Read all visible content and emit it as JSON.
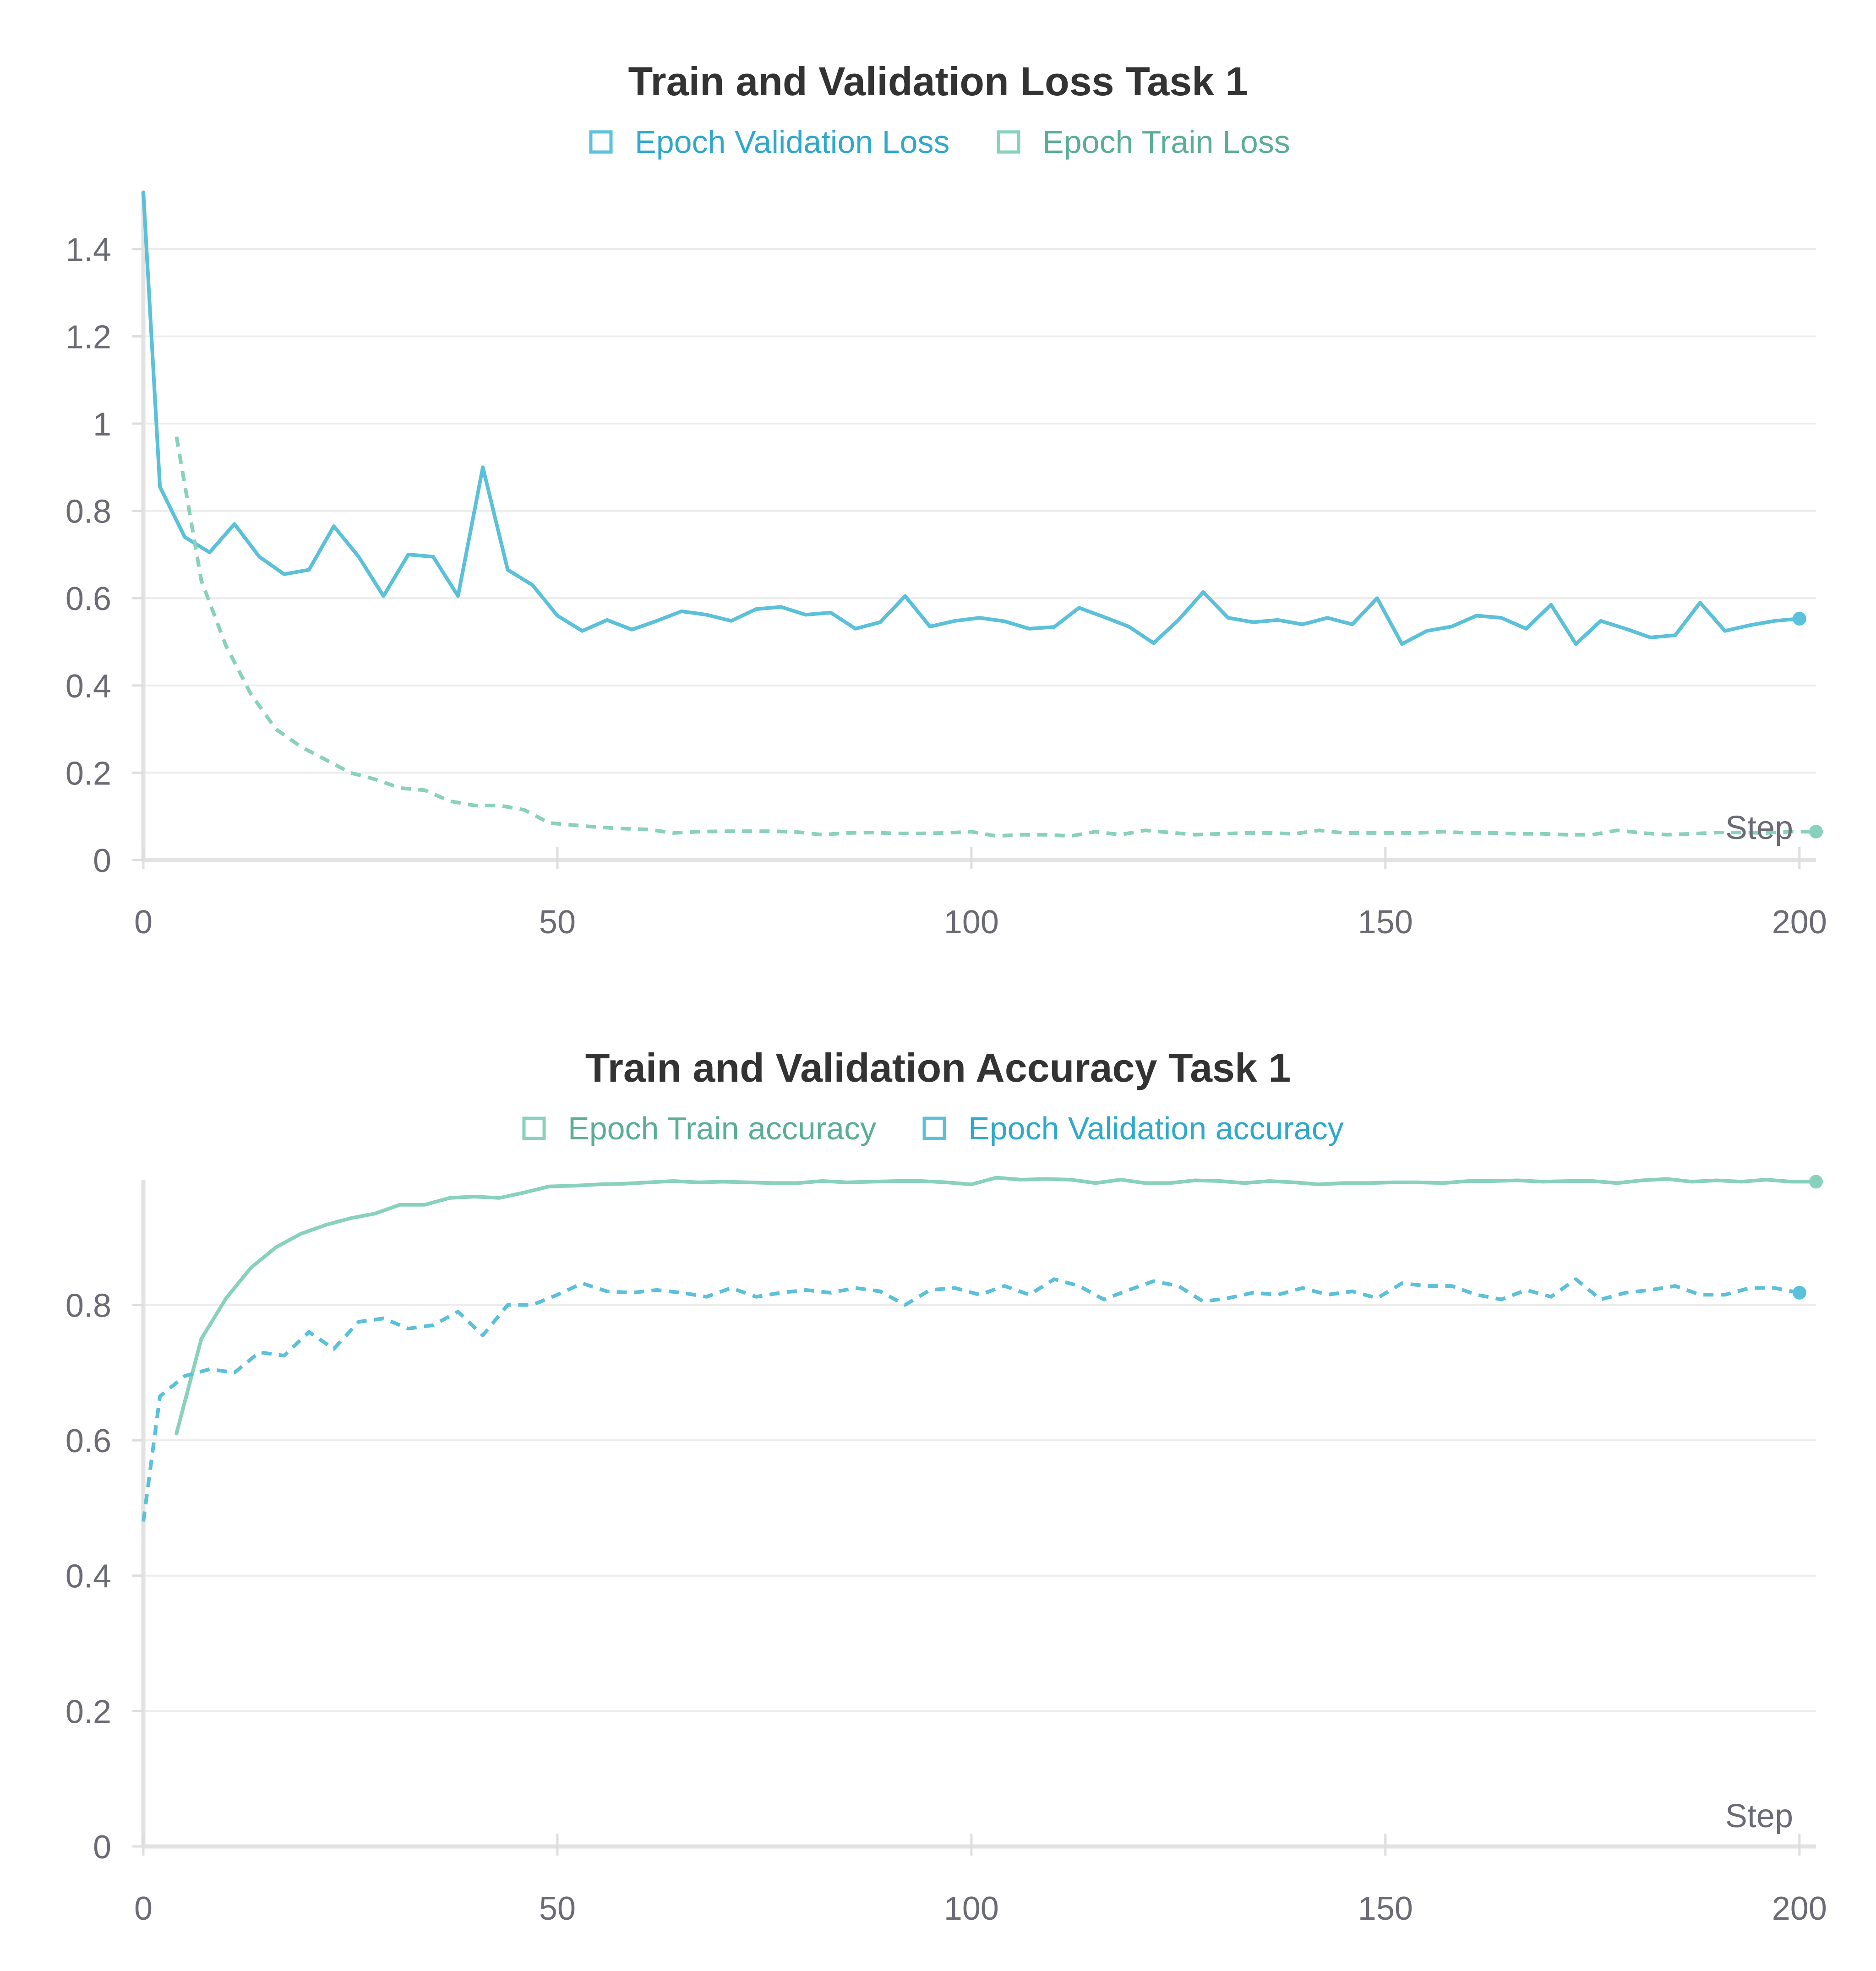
{
  "chart_data": [
    {
      "type": "line",
      "title": "Train and Validation Loss Task 1",
      "xlabel": "Step",
      "ylabel": "",
      "xlim": [
        0,
        202
      ],
      "ylim": [
        0,
        1.53
      ],
      "x_ticks": [
        0,
        50,
        100,
        150,
        200
      ],
      "y_ticks": [
        0,
        0.2,
        0.4,
        0.6,
        0.8,
        1,
        1.2,
        1.4
      ],
      "x_tick_labels": [
        "0",
        "50",
        "100",
        "150",
        "200"
      ],
      "y_tick_labels": [
        "0",
        "0.2",
        "0.4",
        "0.6",
        "0.8",
        "1",
        "1.2",
        "1.4"
      ],
      "grid": true,
      "legend_position": "top-center",
      "series": [
        {
          "name": "Epoch Validation Loss",
          "color": "#5bc0d9",
          "legend_text_color": "#2fa8cc",
          "dash": false,
          "end_marker": true,
          "x": [
            0,
            2,
            5,
            8,
            11,
            14,
            17,
            20,
            23,
            26,
            29,
            32,
            35,
            38,
            41,
            44,
            47,
            50,
            53,
            56,
            59,
            62,
            65,
            68,
            71,
            74,
            77,
            80,
            83,
            86,
            89,
            92,
            95,
            98,
            101,
            104,
            107,
            110,
            113,
            116,
            119,
            122,
            125,
            128,
            131,
            134,
            137,
            140,
            143,
            146,
            149,
            152,
            155,
            158,
            161,
            164,
            167,
            170,
            173,
            176,
            179,
            182,
            185,
            188,
            191,
            194,
            197,
            200
          ],
          "y": [
            1.53,
            0.855,
            0.74,
            0.705,
            0.77,
            0.695,
            0.655,
            0.665,
            0.765,
            0.695,
            0.605,
            0.7,
            0.695,
            0.605,
            0.9,
            0.665,
            0.63,
            0.56,
            0.525,
            0.55,
            0.528,
            0.548,
            0.57,
            0.562,
            0.548,
            0.575,
            0.58,
            0.562,
            0.567,
            0.53,
            0.545,
            0.605,
            0.535,
            0.548,
            0.555,
            0.547,
            0.53,
            0.534,
            0.578,
            0.557,
            0.535,
            0.497,
            0.55,
            0.614,
            0.555,
            0.545,
            0.55,
            0.54,
            0.555,
            0.54,
            0.6,
            0.495,
            0.525,
            0.535,
            0.56,
            0.555,
            0.53,
            0.585,
            0.495,
            0.548,
            0.53,
            0.51,
            0.515,
            0.59,
            0.525,
            0.538,
            0.548,
            0.553
          ]
        },
        {
          "name": "Epoch Train Loss",
          "color": "#88d1bd",
          "legend_text_color": "#5aae96",
          "dash": true,
          "end_marker": true,
          "x": [
            4,
            7,
            10,
            13,
            16,
            19,
            22,
            25,
            28,
            31,
            34,
            37,
            40,
            43,
            46,
            49,
            52,
            55,
            58,
            61,
            64,
            67,
            70,
            73,
            76,
            79,
            82,
            85,
            88,
            91,
            94,
            97,
            100,
            103,
            106,
            109,
            112,
            115,
            118,
            121,
            124,
            127,
            130,
            133,
            136,
            139,
            142,
            145,
            148,
            151,
            154,
            157,
            160,
            163,
            166,
            169,
            172,
            175,
            178,
            181,
            184,
            187,
            190,
            193,
            196,
            199,
            202
          ],
          "y": [
            0.97,
            0.64,
            0.49,
            0.38,
            0.3,
            0.26,
            0.23,
            0.2,
            0.185,
            0.165,
            0.16,
            0.135,
            0.125,
            0.125,
            0.115,
            0.085,
            0.08,
            0.075,
            0.072,
            0.07,
            0.062,
            0.065,
            0.066,
            0.066,
            0.066,
            0.064,
            0.058,
            0.062,
            0.063,
            0.061,
            0.061,
            0.062,
            0.065,
            0.055,
            0.058,
            0.058,
            0.055,
            0.065,
            0.058,
            0.068,
            0.063,
            0.058,
            0.06,
            0.062,
            0.062,
            0.06,
            0.068,
            0.062,
            0.062,
            0.062,
            0.062,
            0.065,
            0.062,
            0.062,
            0.06,
            0.06,
            0.058,
            0.058,
            0.068,
            0.062,
            0.058,
            0.06,
            0.063,
            0.063,
            0.062,
            0.065,
            0.065
          ]
        }
      ]
    },
    {
      "type": "line",
      "title": "Train and Validation Accuracy Task 1",
      "xlabel": "Step",
      "ylabel": "",
      "xlim": [
        0,
        202
      ],
      "ylim": [
        0,
        0.985
      ],
      "x_ticks": [
        0,
        50,
        100,
        150,
        200
      ],
      "y_ticks": [
        0,
        0.2,
        0.4,
        0.6,
        0.8
      ],
      "x_tick_labels": [
        "0",
        "50",
        "100",
        "150",
        "200"
      ],
      "y_tick_labels": [
        "0",
        "0.2",
        "0.4",
        "0.6",
        "0.8"
      ],
      "grid": true,
      "legend_position": "top-center",
      "series": [
        {
          "name": "Epoch Train accuracy",
          "color": "#88d1bd",
          "legend_text_color": "#5aae96",
          "dash": false,
          "end_marker": true,
          "x": [
            4,
            7,
            10,
            13,
            16,
            19,
            22,
            25,
            28,
            31,
            34,
            37,
            40,
            43,
            46,
            49,
            52,
            55,
            58,
            61,
            64,
            67,
            70,
            73,
            76,
            79,
            82,
            85,
            88,
            91,
            94,
            97,
            100,
            103,
            106,
            109,
            112,
            115,
            118,
            121,
            124,
            127,
            130,
            133,
            136,
            139,
            142,
            145,
            148,
            151,
            154,
            157,
            160,
            163,
            166,
            169,
            172,
            175,
            178,
            181,
            184,
            187,
            190,
            193,
            196,
            199,
            202
          ],
          "y": [
            0.61,
            0.75,
            0.81,
            0.855,
            0.885,
            0.905,
            0.918,
            0.928,
            0.935,
            0.948,
            0.948,
            0.958,
            0.96,
            0.958,
            0.966,
            0.975,
            0.976,
            0.978,
            0.979,
            0.981,
            0.983,
            0.981,
            0.982,
            0.981,
            0.98,
            0.98,
            0.983,
            0.981,
            0.982,
            0.983,
            0.983,
            0.981,
            0.978,
            0.988,
            0.985,
            0.986,
            0.985,
            0.98,
            0.985,
            0.98,
            0.98,
            0.984,
            0.983,
            0.98,
            0.983,
            0.981,
            0.978,
            0.98,
            0.98,
            0.981,
            0.981,
            0.98,
            0.983,
            0.983,
            0.984,
            0.982,
            0.983,
            0.983,
            0.98,
            0.984,
            0.986,
            0.982,
            0.984,
            0.982,
            0.985,
            0.982,
            0.982
          ]
        },
        {
          "name": "Epoch Validation accuracy",
          "color": "#5bc0d9",
          "legend_text_color": "#2fa8cc",
          "dash": true,
          "end_marker": true,
          "x": [
            0,
            2,
            5,
            8,
            11,
            14,
            17,
            20,
            23,
            26,
            29,
            32,
            35,
            38,
            41,
            44,
            47,
            50,
            53,
            56,
            59,
            62,
            65,
            68,
            71,
            74,
            77,
            80,
            83,
            86,
            89,
            92,
            95,
            98,
            101,
            104,
            107,
            110,
            113,
            116,
            119,
            122,
            125,
            128,
            131,
            134,
            137,
            140,
            143,
            146,
            149,
            152,
            155,
            158,
            161,
            164,
            167,
            170,
            173,
            176,
            179,
            182,
            185,
            188,
            191,
            194,
            197,
            200
          ],
          "y": [
            0.48,
            0.665,
            0.695,
            0.705,
            0.7,
            0.73,
            0.725,
            0.76,
            0.735,
            0.775,
            0.78,
            0.765,
            0.77,
            0.79,
            0.755,
            0.8,
            0.8,
            0.815,
            0.832,
            0.82,
            0.818,
            0.822,
            0.818,
            0.812,
            0.825,
            0.812,
            0.818,
            0.822,
            0.818,
            0.825,
            0.82,
            0.8,
            0.822,
            0.825,
            0.815,
            0.828,
            0.815,
            0.838,
            0.828,
            0.808,
            0.822,
            0.835,
            0.828,
            0.805,
            0.81,
            0.818,
            0.815,
            0.825,
            0.815,
            0.82,
            0.81,
            0.832,
            0.828,
            0.828,
            0.815,
            0.808,
            0.822,
            0.812,
            0.838,
            0.808,
            0.818,
            0.822,
            0.828,
            0.815,
            0.815,
            0.825,
            0.825,
            0.818
          ]
        }
      ]
    }
  ]
}
